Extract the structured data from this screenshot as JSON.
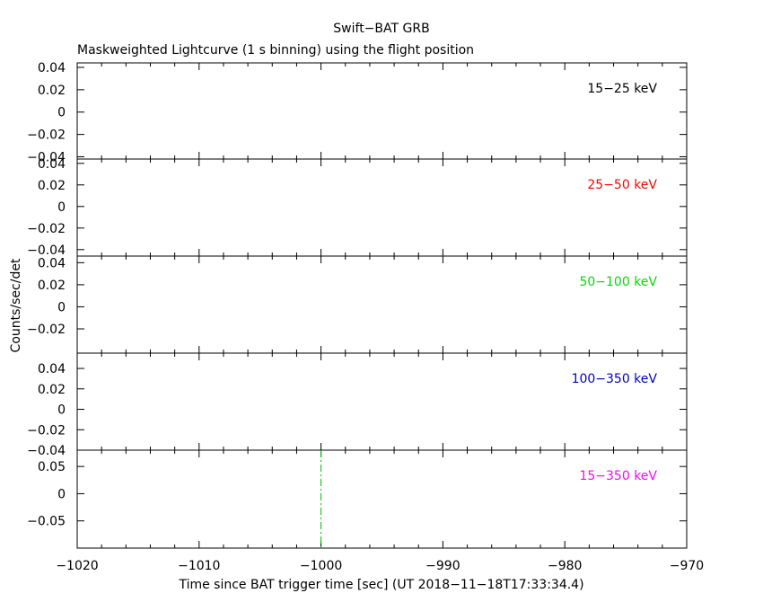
{
  "chart_data": {
    "type": "line",
    "title": "Swift−BAT GRB",
    "subtitle": "Maskweighted Lightcurve (1 s binning) using the flight position",
    "xlabel": "Time since BAT trigger time [sec] (UT 2018−11−18T17:33:34.4)",
    "ylabel": "Counts/sec/det",
    "xlim": [
      -1020,
      -970
    ],
    "xticks": [
      -1020,
      -1010,
      -1000,
      -990,
      -980,
      -970
    ],
    "xtick_labels": [
      "−1020",
      "−1010",
      "−1000",
      "−990",
      "−980",
      "−970"
    ],
    "trigger_marker_x": -1000,
    "panels": [
      {
        "band": "15−25 keV",
        "color": "#000000",
        "ylim": [
          -0.042,
          0.044
        ],
        "yticks": [
          0.04,
          0.02,
          0,
          -0.02,
          -0.04
        ],
        "ytick_labels": [
          "0.04",
          "0.02",
          "0",
          "−0.02",
          "−0.04"
        ],
        "series": []
      },
      {
        "band": "25−50 keV",
        "color": "#ff0000",
        "ylim": [
          -0.046,
          0.044
        ],
        "yticks": [
          0.04,
          0.02,
          0,
          -0.02,
          -0.04
        ],
        "ytick_labels": [
          "0.04",
          "0.02",
          "0",
          "−0.02",
          "−0.04"
        ],
        "series": []
      },
      {
        "band": "50−100 keV",
        "color": "#00dd00",
        "ylim": [
          -0.042,
          0.046
        ],
        "yticks": [
          0.04,
          0.02,
          0,
          -0.02
        ],
        "ytick_labels": [
          "0.04",
          "0.02",
          "0",
          "−0.02"
        ],
        "series": []
      },
      {
        "band": "100−350 keV",
        "color": "#0000cc",
        "ylim": [
          -0.04,
          0.055
        ],
        "yticks": [
          0.04,
          0.02,
          0,
          -0.02,
          -0.04
        ],
        "ytick_labels": [
          "0.04",
          "0.02",
          "0",
          "−0.02",
          "−0.04"
        ],
        "series": []
      },
      {
        "band": "15−350 keV",
        "color": "#ff00ff",
        "ylim": [
          -0.1,
          0.08
        ],
        "yticks": [
          0.05,
          0,
          -0.05
        ],
        "ytick_labels": [
          "0.05",
          "0",
          "−0.05"
        ],
        "series": []
      }
    ]
  }
}
